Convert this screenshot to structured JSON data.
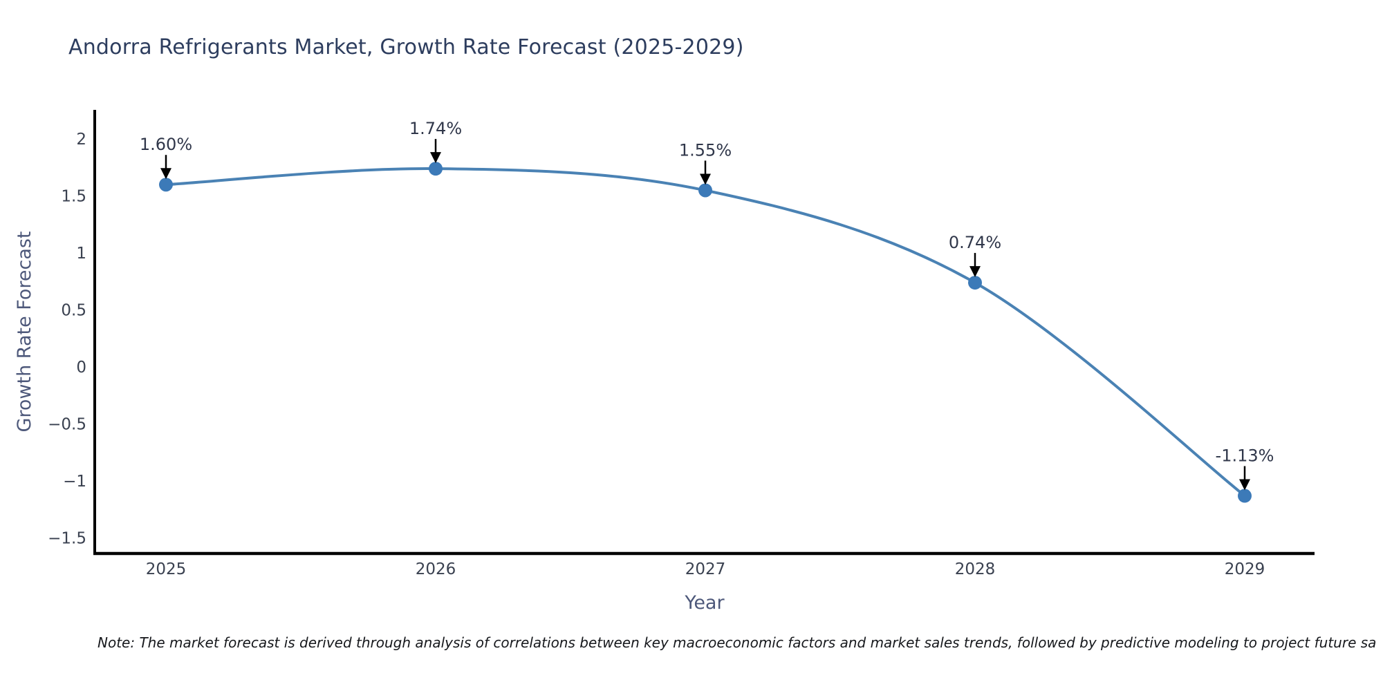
{
  "title": {
    "text": "Andorra Refrigerants Market, Growth Rate Forecast (2025-2029)",
    "color": "#2d3d5e"
  },
  "note": {
    "text": "Note: The market forecast is derived through analysis of correlations between key macroeconomic factors and market sales trends, followed by predictive modeling to project future sa"
  },
  "chart_data": {
    "type": "line",
    "x": [
      2025,
      2026,
      2027,
      2028,
      2029
    ],
    "y": [
      1.6,
      1.74,
      1.55,
      0.74,
      -1.13
    ],
    "point_labels": [
      "1.60%",
      "1.74%",
      "1.55%",
      "0.74%",
      "-1.13%"
    ],
    "x_tick_labels": [
      "2025",
      "2026",
      "2027",
      "2028",
      "2029"
    ],
    "ytick_values": [
      2,
      1.5,
      1,
      0.5,
      0,
      -0.5,
      -1,
      -1.5
    ],
    "ytick_labels": [
      "2",
      "1.5",
      "1",
      "0.5",
      "0",
      "−0.5",
      "−1",
      "−1.5"
    ],
    "xlabel": "Year",
    "ylabel": "Growth Rate Forecast",
    "ylim": [
      -1.63,
      2.25
    ],
    "grid": false,
    "legend": "none",
    "smooth": true,
    "colors": {
      "line": "#4a82b4",
      "marker": "#3c7ab8",
      "axis": "#000000",
      "tick_label": "#3a4150",
      "axis_title": "#4d587a",
      "annotation_text": "#30374a",
      "annotation_arrow": "#000000"
    }
  }
}
